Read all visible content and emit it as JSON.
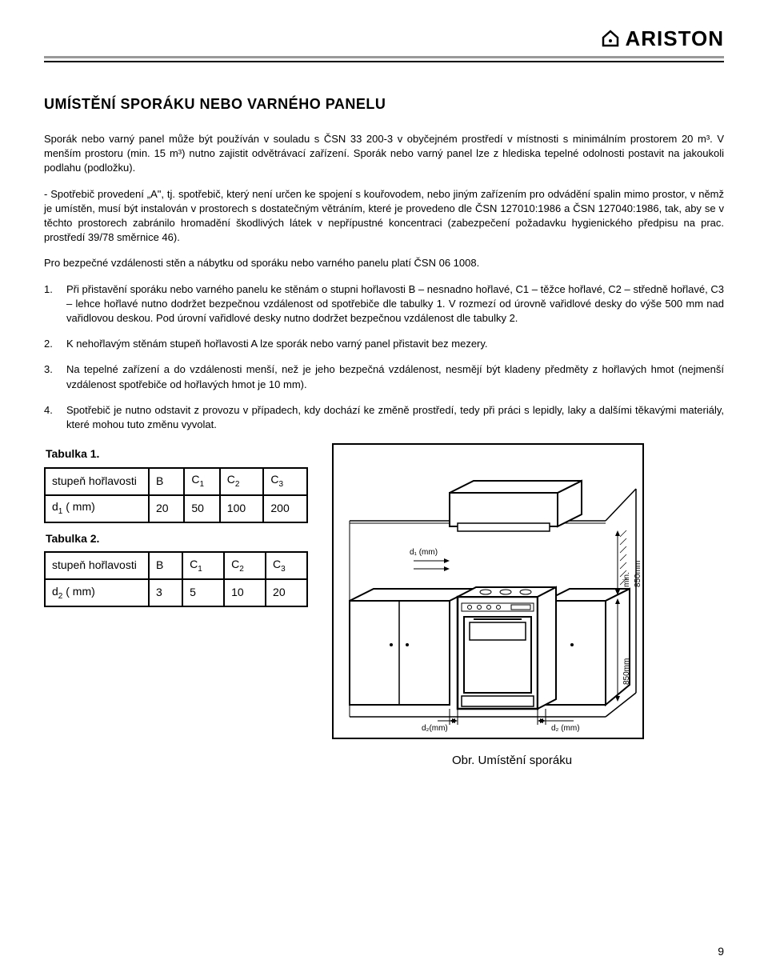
{
  "brand": "ARISTON",
  "title": "UMÍSTĚNÍ SPORÁKU NEBO VARNÉHO PANELU",
  "para1": "Sporák nebo varný panel může být používán v souladu s ČSN 33 200-3 v obyčejném prostředí v místnosti s minimálním prostorem 20 m³. V menším prostoru (min. 15 m³) nutno zajistit odvětrávací zařízení. Sporák nebo varný panel lze z hlediska tepelné odolnosti postavit na jakoukoli podlahu (podložku).",
  "para2": "- Spotřebič provedení „A\", tj. spotřebič, který není určen ke spojení s kouřovodem, nebo jiným zařízením pro odvádění spalin mimo prostor, v němž je umístěn, musí být instalován v prostorech s dostatečným větráním, které je provedeno dle ČSN 127010:1986 a ČSN 127040:1986, tak, aby se v těchto prostorech zabránilo hromadění škodlivých látek v nepřípustné koncentraci (zabezpečení požadavku hygienického předpisu na prac. prostředí 39/78 směrnice 46).",
  "para3": "Pro bezpečné vzdálenosti stěn a nábytku od sporáku nebo varného panelu platí ČSN 06 1008.",
  "list": {
    "i1": "Při přistavění sporáku nebo varného panelu ke stěnám o stupni hořlavosti B – nesnadno hořlavé, C1 – těžce hořlavé, C2 – středně hořlavé, C3 – lehce hořlavé nutno dodržet bezpečnou vzdálenost od spotřebiče dle tabulky 1. V rozmezí od úrovně vařidlové desky do výše 500 mm nad vařidlovou deskou. Pod úrovní vařidlové desky nutno dodržet bezpečnou vzdálenost dle tabulky 2.",
    "i2": "K nehořlavým stěnám stupeň hořlavosti A lze sporák nebo varný panel   přistavit bez mezery.",
    "i3": "Na tepelné zařízení a do vzdálenosti menší, než je jeho bezpečná vzdálenost, nesmějí být kladeny předměty z hořlavých hmot (nejmenší vzdálenost spotřebiče od hořlavých hmot je 10 mm).",
    "i4": "Spotřebič je nutno odstavit z provozu v případech, kdy dochází ke změně prostředí, tedy při práci s lepidly, laky a dalšími těkavými materiály, které mohou tuto změnu vyvolat."
  },
  "table1": {
    "title": "Tabulka 1.",
    "row_label": "stupeň hořlavosti",
    "d_label_html": "d<span class=\"sub\">1</span> ( mm)",
    "cols": [
      "B",
      "C1",
      "C2",
      "C3"
    ],
    "vals": [
      "20",
      "50",
      "100",
      "200"
    ]
  },
  "table2": {
    "title": "Tabulka 2.",
    "row_label": "stupeň hořlavosti",
    "d_label_html": "d<span class=\"sub\">2</span> ( mm)",
    "cols": [
      "B",
      "C1",
      "C2",
      "C3"
    ],
    "vals": [
      "3",
      "5",
      "10",
      "20"
    ]
  },
  "figure": {
    "caption": "Obr. Umístění sporáku",
    "labels": {
      "d1": "d₁ (mm)",
      "d2a": "d₂(mm)",
      "d2b": "d₂ (mm)",
      "h1": "min. 850mm",
      "h2": "850mm"
    }
  },
  "page_number": "9"
}
